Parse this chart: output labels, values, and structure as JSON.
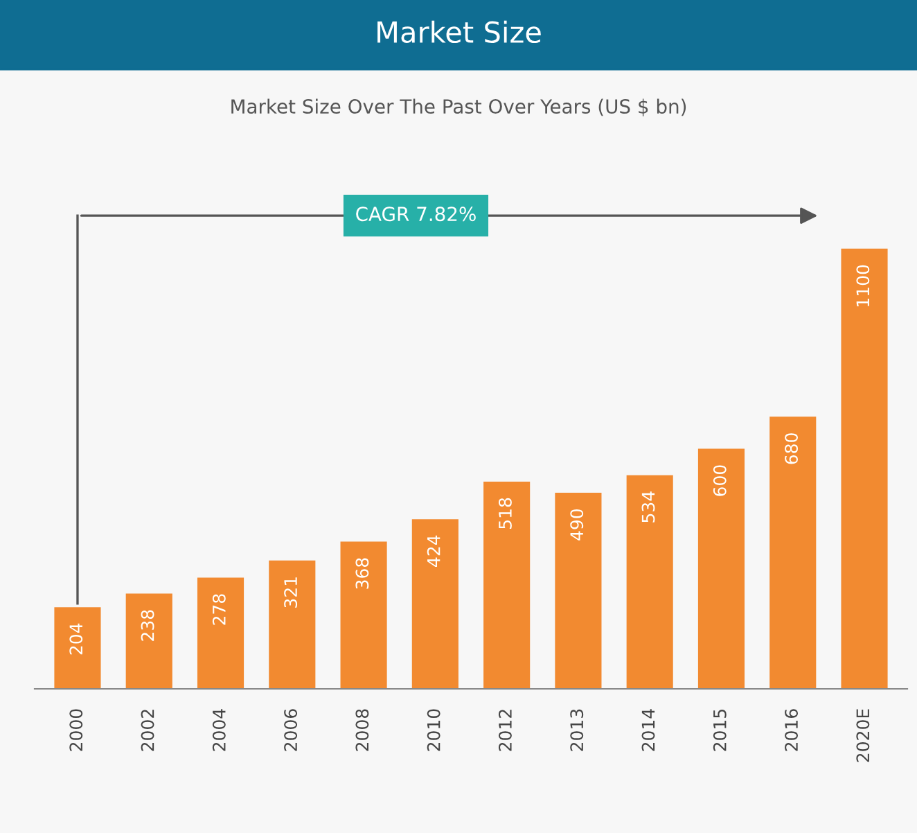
{
  "chart_data": {
    "type": "bar",
    "title": "Market Size",
    "subtitle": "Market Size Over The Past Over Years (US $ bn)",
    "categories": [
      "2000",
      "2002",
      "2004",
      "2006",
      "2008",
      "2010",
      "2012",
      "2013",
      "2014",
      "2015",
      "2016",
      "2020E"
    ],
    "values": [
      204,
      238,
      278,
      321,
      368,
      424,
      518,
      490,
      534,
      600,
      680,
      1100
    ],
    "color": "#f28a30",
    "data_labels": true,
    "annotations": [
      "CAGR 7.82%"
    ]
  }
}
